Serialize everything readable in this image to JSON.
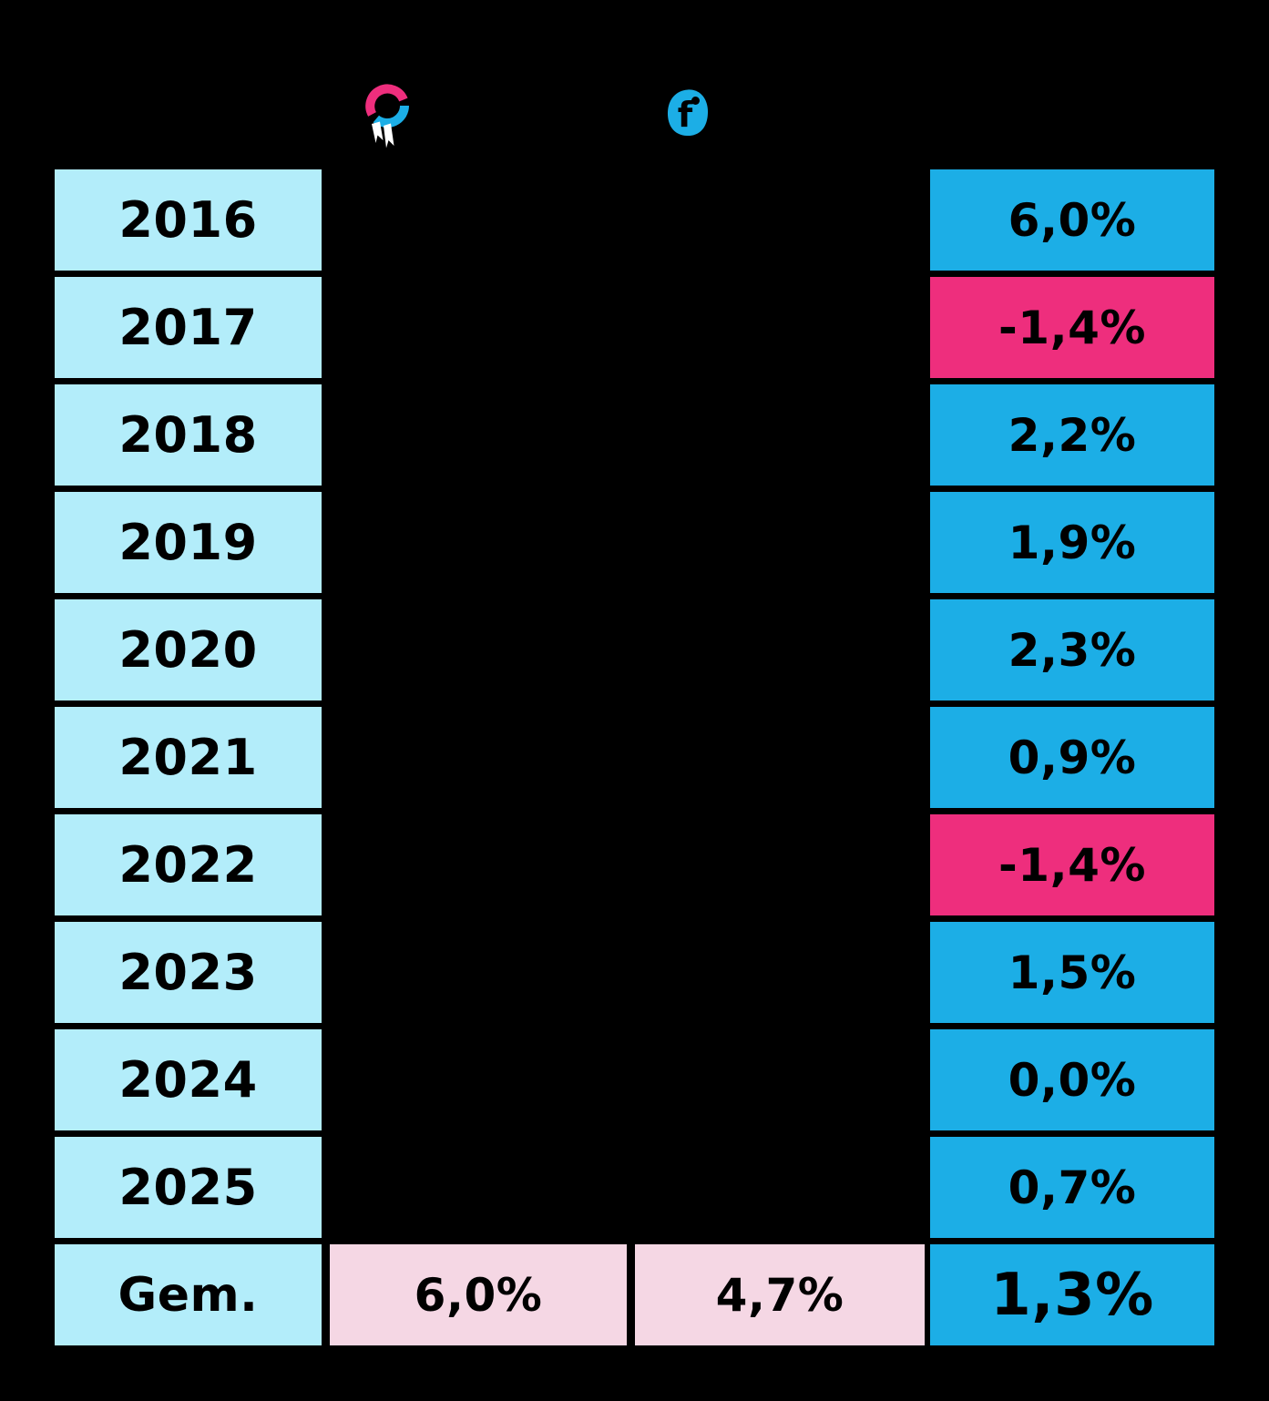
{
  "page": {
    "background": "#000000"
  },
  "header": {
    "col2_icon": "medal-ribbon-icon",
    "col3_icon": "f-logo-icon",
    "f_logo_glyph": "f"
  },
  "table": {
    "rows": [
      {
        "label": "2016",
        "value": "6,0%",
        "value_type": "positive"
      },
      {
        "label": "2017",
        "value": "-1,4%",
        "value_type": "negative"
      },
      {
        "label": "2018",
        "value": "2,2%",
        "value_type": "positive"
      },
      {
        "label": "2019",
        "value": "1,9%",
        "value_type": "positive"
      },
      {
        "label": "2020",
        "value": "2,3%",
        "value_type": "positive"
      },
      {
        "label": "2021",
        "value": "0,9%",
        "value_type": "positive"
      },
      {
        "label": "2022",
        "value": "-1,4%",
        "value_type": "negative"
      },
      {
        "label": "2023",
        "value": "1,5%",
        "value_type": "positive"
      },
      {
        "label": "2024",
        "value": "0,0%",
        "value_type": "positive"
      },
      {
        "label": "2025",
        "value": "0,7%",
        "value_type": "positive"
      }
    ],
    "summary": {
      "label": "Gem.",
      "col2_value": "6,0%",
      "col3_value": "4,7%",
      "col4_value": "1,3%"
    }
  },
  "colors": {
    "background": "#000000",
    "year_cell": "#b3edfa",
    "positive_cell": "#1caee6",
    "negative_cell": "#ee2e7d",
    "summary_pale_pink_cell": "#f5d7e4",
    "icon_pink": "#ee2e7d",
    "icon_blue": "#1caee6",
    "ribbon_white": "#ffffff",
    "text": "#000000"
  },
  "chart_data": {
    "type": "table",
    "row_labels": [
      "2016",
      "2017",
      "2018",
      "2019",
      "2020",
      "2021",
      "2022",
      "2023",
      "2024",
      "2025",
      "Gem."
    ],
    "columns": [
      {
        "name": "year-column",
        "header_icon": null
      },
      {
        "name": "medal-icon-column",
        "header_icon": "medal-ribbon-icon",
        "visible_values": {
          "Gem.": 6.0
        }
      },
      {
        "name": "f-logo-column",
        "header_icon": "f-logo-icon",
        "visible_values": {
          "Gem.": 4.7
        }
      },
      {
        "name": "result-column",
        "header_icon": null,
        "values_pct": [
          6.0,
          -1.4,
          2.2,
          1.9,
          2.3,
          0.9,
          -1.4,
          1.5,
          0.0,
          0.7
        ],
        "average_pct": 1.3,
        "negative_years": [
          "2017",
          "2022"
        ]
      }
    ],
    "legend_position": "none",
    "grid": false
  }
}
